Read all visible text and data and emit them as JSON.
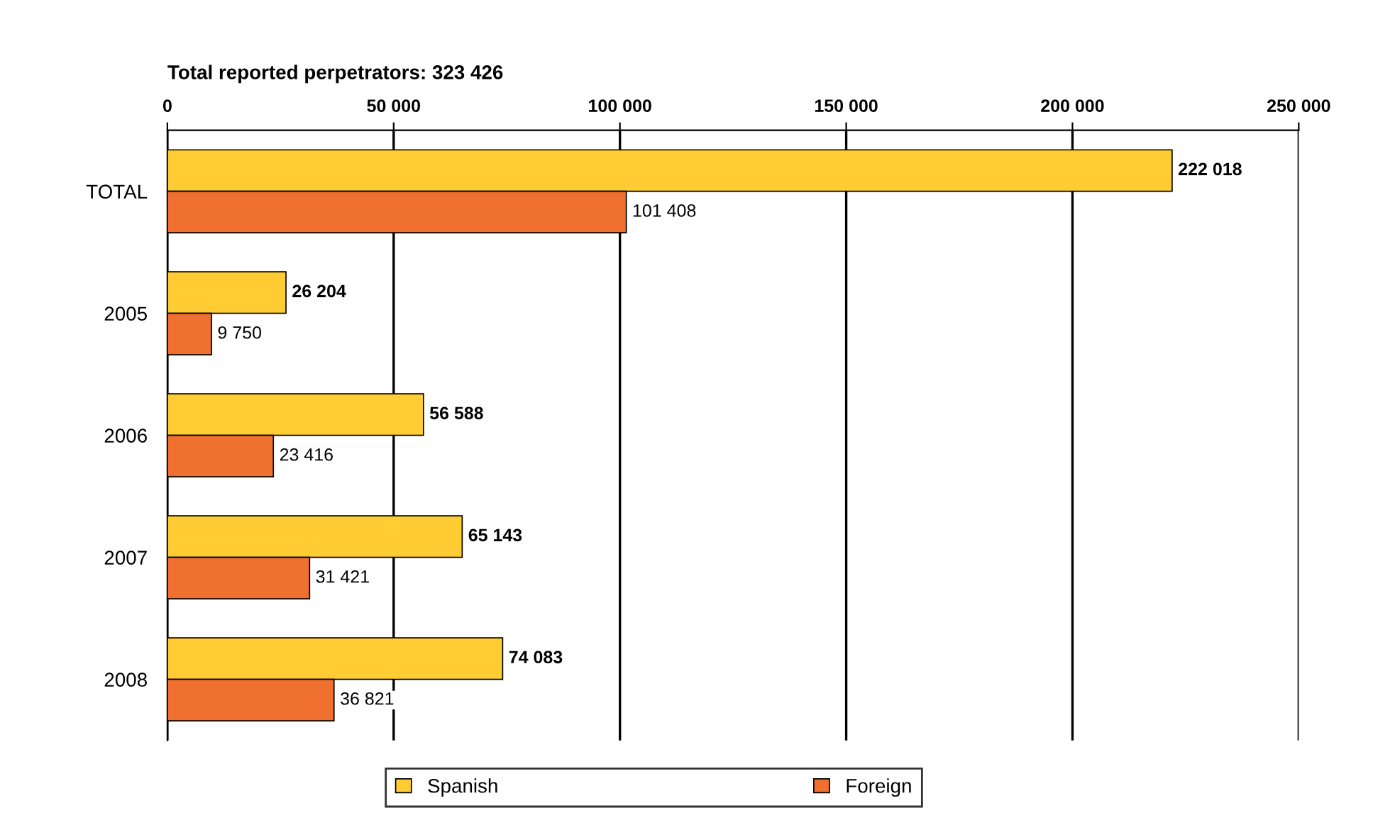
{
  "chart_data": {
    "type": "bar",
    "orientation": "horizontal",
    "title": "Total reported perpetrators: 323 426",
    "categories": [
      "TOTAL",
      "2005",
      "2006",
      "2007",
      "2008"
    ],
    "series": [
      {
        "name": "Spanish",
        "color": "#ffcc33",
        "values": [
          222018,
          26204,
          56588,
          65143,
          74083
        ],
        "value_labels": [
          "222 018",
          "26 204",
          "56 588",
          "65 143",
          "74 083"
        ]
      },
      {
        "name": "Foreign",
        "color": "#f07030",
        "values": [
          101408,
          9750,
          23416,
          31421,
          36821
        ],
        "value_labels": [
          "101 408",
          "9 750",
          "23 416",
          "31 421",
          "36 821"
        ]
      }
    ],
    "xlim": [
      0,
      250000
    ],
    "xticks": [
      0,
      {
        "value": 50000,
        "label": "50 000"
      },
      {
        "value": 100000,
        "label": "100 000"
      },
      {
        "value": 150000,
        "label": "150 000"
      },
      {
        "value": 200000,
        "label": "200 000"
      },
      {
        "value": 250000,
        "label": "250 000"
      }
    ],
    "grid": "x",
    "legend": "bottom"
  }
}
